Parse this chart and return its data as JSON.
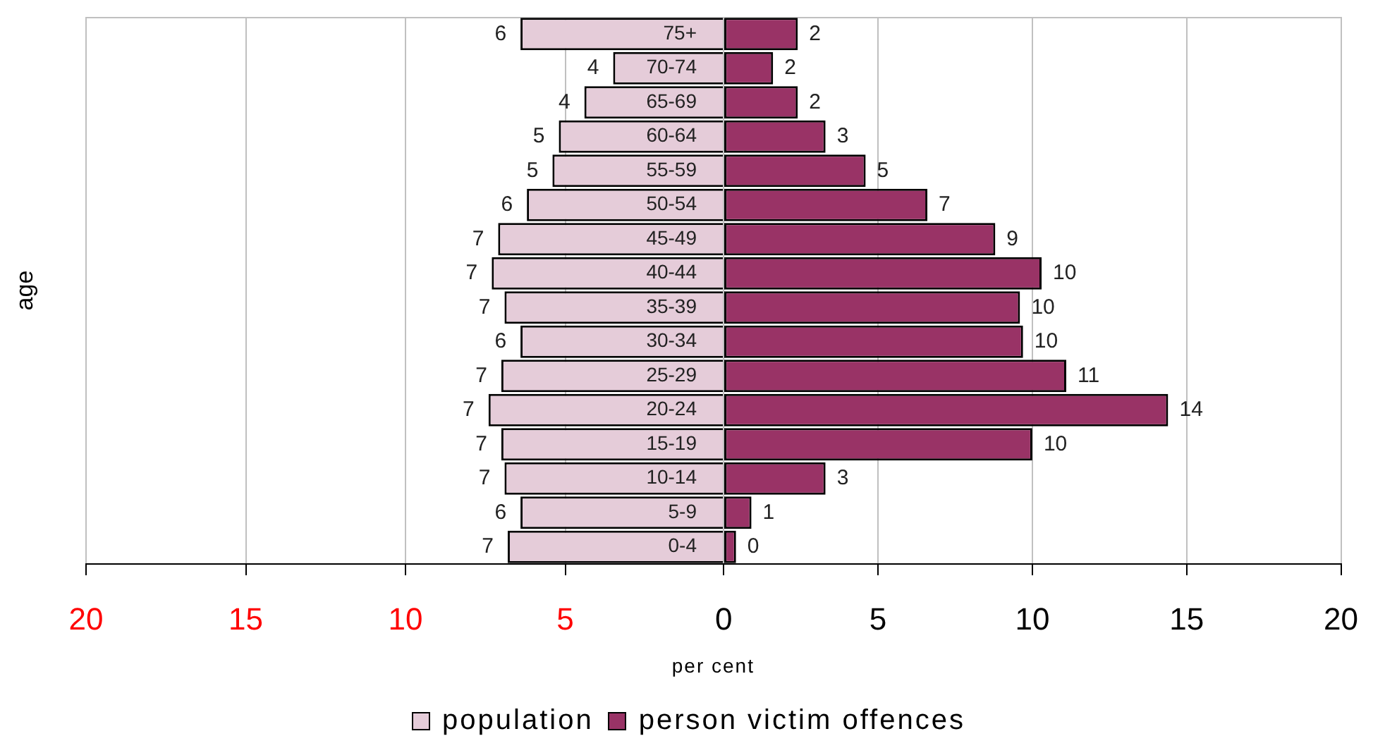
{
  "chart_data": [
    {
      "type": "bar",
      "orientation": "horizontal",
      "ylabel": "age",
      "xlabel": "per cent",
      "categories": [
        "75+",
        "70-74",
        "65-69",
        "60-64",
        "55-59",
        "50-54",
        "45-49",
        "40-44",
        "35-39",
        "30-34",
        "25-29",
        "20-24",
        "15-19",
        "10-14",
        "5-9",
        "0-4"
      ],
      "series": [
        {
          "name": "population",
          "color": "#e5ccd9",
          "values": [
            6.4,
            3.5,
            4.4,
            5.2,
            5.4,
            6.2,
            7.1,
            7.3,
            6.9,
            6.4,
            7.0,
            7.4,
            7.0,
            6.9,
            6.4,
            6.8
          ],
          "value_labels": [
            "6",
            "4",
            "4",
            "5",
            "5",
            "6",
            "7",
            "7",
            "7",
            "6",
            "7",
            "7",
            "7",
            "7",
            "6",
            "7"
          ]
        }
      ],
      "xlim": [
        20,
        0
      ],
      "xticks": [
        20,
        15,
        10,
        5
      ],
      "grid": "x",
      "legend": "bottom"
    },
    {
      "type": "bar",
      "orientation": "horizontal",
      "tick_labels": "x",
      "categories": [
        null,
        null,
        null,
        null,
        null,
        null,
        null,
        null,
        null,
        null,
        null,
        null,
        null,
        null,
        null,
        null
      ],
      "series": [
        {
          "name": "person victim offences",
          "color": "#993366",
          "values": [
            2.4,
            1.6,
            2.4,
            3.3,
            4.6,
            6.6,
            8.8,
            10.3,
            9.6,
            9.7,
            11.1,
            14.4,
            10.0,
            3.3,
            0.9,
            0.4
          ],
          "value_labels": [
            "2",
            "2",
            "2",
            "3",
            "5",
            "7",
            "9",
            "10",
            "10",
            "10",
            "11",
            "14",
            "10",
            "3",
            "1",
            "0"
          ]
        }
      ],
      "xlim": [
        0,
        20
      ],
      "xticks": [
        0,
        5,
        10,
        15,
        20
      ],
      "grid": "x",
      "legend": "bottom"
    }
  ]
}
